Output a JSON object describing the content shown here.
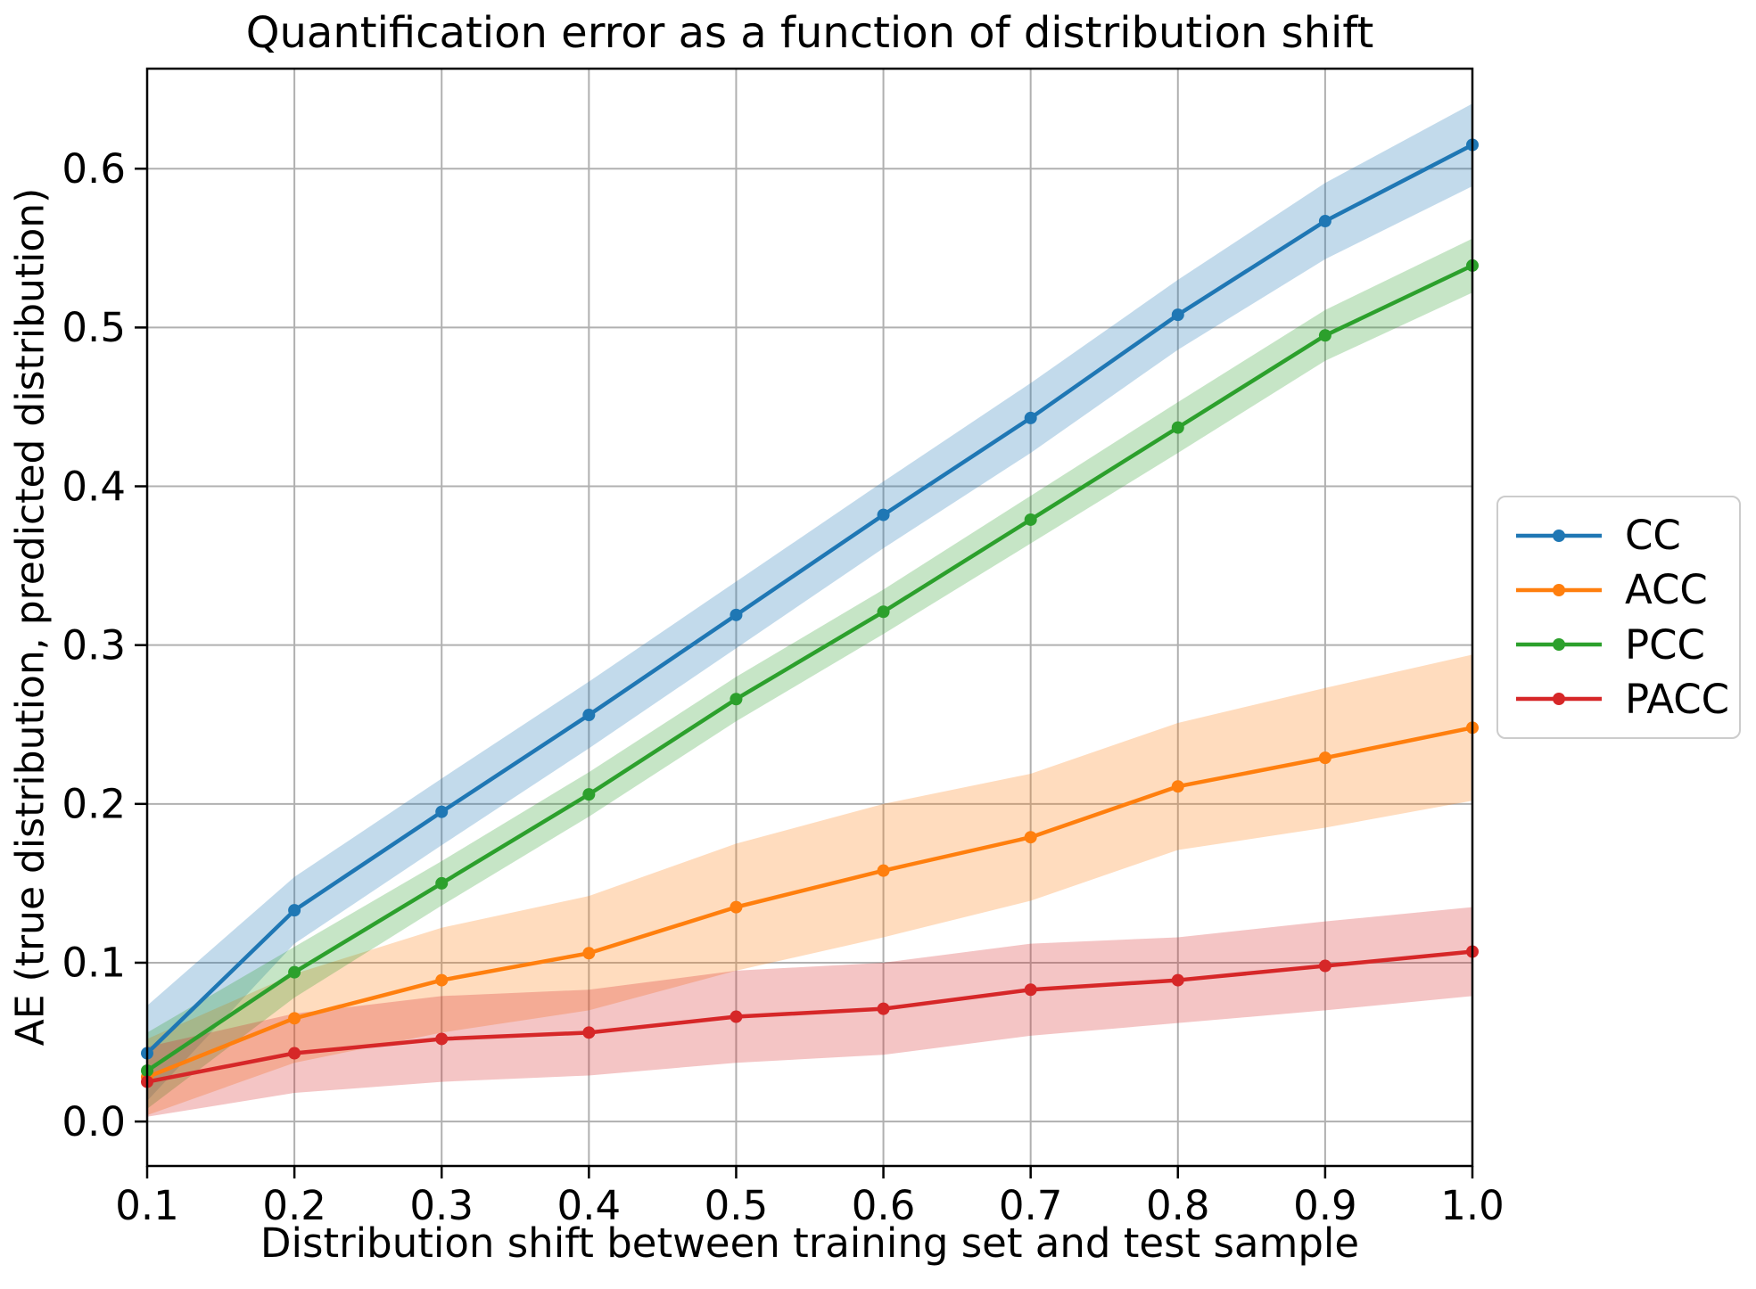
{
  "figure": {
    "background": "#ffffff",
    "grid_color": "#b0b0b0",
    "spine_color": "#000000",
    "legend_border_color": "#cccccc"
  },
  "chart_data": {
    "type": "line",
    "title": "Quantification error as a function of distribution shift",
    "xlabel": "Distribution shift between training set and test sample",
    "ylabel": "AE (true distribution, predicted distribution)",
    "x": [
      0.1,
      0.2,
      0.3,
      0.4,
      0.5,
      0.6,
      0.7,
      0.8,
      0.9,
      1.0
    ],
    "x_tick_labels": [
      "0.1",
      "0.2",
      "0.3",
      "0.4",
      "0.5",
      "0.6",
      "0.7",
      "0.8",
      "0.9",
      "1.0"
    ],
    "y_ticks": [
      0.0,
      0.1,
      0.2,
      0.3,
      0.4,
      0.5,
      0.6
    ],
    "y_tick_labels": [
      "0.0",
      "0.1",
      "0.2",
      "0.3",
      "0.4",
      "0.5",
      "0.6"
    ],
    "xlim": [
      0.1,
      1.0
    ],
    "ylim": [
      -0.028,
      0.663
    ],
    "grid": true,
    "legend_position": "center right, outside axes",
    "band_style": "shaded confidence band per series",
    "series": [
      {
        "name": "CC",
        "color": "#1f77b4",
        "values": [
          0.043,
          0.133,
          0.195,
          0.256,
          0.319,
          0.382,
          0.443,
          0.508,
          0.567,
          0.615
        ],
        "band_halfwidth": [
          0.03,
          0.021,
          0.021,
          0.021,
          0.021,
          0.021,
          0.022,
          0.022,
          0.024,
          0.026
        ]
      },
      {
        "name": "ACC",
        "color": "#ff7f0e",
        "values": [
          0.028,
          0.065,
          0.089,
          0.106,
          0.135,
          0.158,
          0.179,
          0.211,
          0.229,
          0.248
        ],
        "band_halfwidth": [
          0.024,
          0.028,
          0.033,
          0.036,
          0.04,
          0.042,
          0.04,
          0.04,
          0.044,
          0.046
        ]
      },
      {
        "name": "PCC",
        "color": "#2ca02c",
        "values": [
          0.032,
          0.094,
          0.15,
          0.206,
          0.266,
          0.321,
          0.379,
          0.437,
          0.495,
          0.539
        ],
        "band_halfwidth": [
          0.024,
          0.016,
          0.014,
          0.014,
          0.014,
          0.014,
          0.015,
          0.016,
          0.016,
          0.017
        ]
      },
      {
        "name": "PACC",
        "color": "#d62728",
        "values": [
          0.025,
          0.043,
          0.052,
          0.056,
          0.066,
          0.071,
          0.083,
          0.089,
          0.098,
          0.107
        ],
        "band_halfwidth": [
          0.022,
          0.025,
          0.027,
          0.027,
          0.029,
          0.029,
          0.029,
          0.027,
          0.028,
          0.028
        ]
      }
    ]
  }
}
